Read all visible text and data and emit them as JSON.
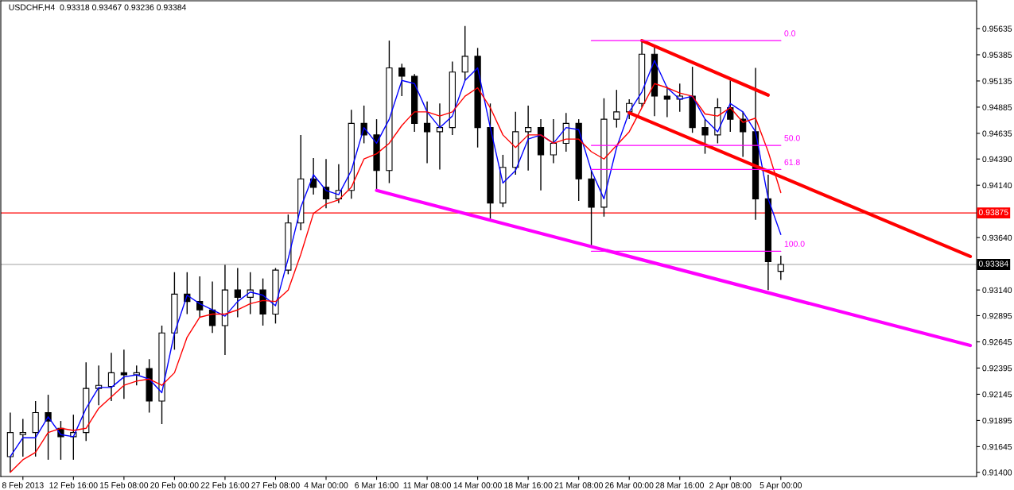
{
  "chart_data": {
    "type": "candlestick",
    "title": "USDCHF,H4  0.93318 0.93467 0.93236 0.93384",
    "categories": [
      null,
      "8 Feb 2013",
      null,
      null,
      null,
      "12 Feb 16:00",
      null,
      null,
      null,
      "15 Feb 08:00",
      null,
      null,
      null,
      "20 Feb 00:00",
      null,
      null,
      null,
      "22 Feb 16:00",
      null,
      null,
      null,
      "27 Feb 08:00",
      null,
      null,
      null,
      "4 Mar 00:00",
      null,
      null,
      null,
      "6 Mar 16:00",
      null,
      null,
      null,
      "11 Mar 08:00",
      null,
      null,
      null,
      "14 Mar 00:00",
      null,
      null,
      null,
      "18 Mar 16:00",
      null,
      null,
      null,
      "21 Mar 08:00",
      null,
      null,
      null,
      "26 Mar 00:00",
      null,
      null,
      null,
      "28 Mar 16:00",
      null,
      null,
      null,
      "2 Apr 08:00",
      null,
      null,
      null,
      "5 Apr 00:00",
      null,
      null,
      null,
      null,
      null,
      null,
      null,
      null,
      null,
      null,
      null,
      null,
      null,
      null,
      null
    ],
    "ohlc": [
      [
        0.9155,
        0.9197,
        0.914,
        0.9178
      ],
      [
        0.9176,
        0.9191,
        0.9155,
        0.9178
      ],
      [
        0.9178,
        0.9208,
        0.9155,
        0.9197
      ],
      [
        0.9197,
        0.9214,
        0.9152,
        0.9189
      ],
      [
        0.9182,
        0.9189,
        0.9152,
        0.9174
      ],
      [
        0.9174,
        0.9195,
        0.9152,
        0.9178
      ],
      [
        0.9178,
        0.9245,
        0.917,
        0.922
      ],
      [
        0.922,
        0.9242,
        0.9204,
        0.9223
      ],
      [
        0.9222,
        0.9254,
        0.9208,
        0.9235
      ],
      [
        0.9235,
        0.9257,
        0.921,
        0.9233
      ],
      [
        0.9233,
        0.9242,
        0.9223,
        0.9235
      ],
      [
        0.9239,
        0.9248,
        0.9197,
        0.9208
      ],
      [
        0.9208,
        0.928,
        0.9186,
        0.9273
      ],
      [
        0.9273,
        0.9331,
        0.9257,
        0.931
      ],
      [
        0.931,
        0.9331,
        0.9291,
        0.9303
      ],
      [
        0.9303,
        0.9327,
        0.9288,
        0.9295
      ],
      [
        0.9295,
        0.9322,
        0.9273,
        0.928
      ],
      [
        0.928,
        0.9338,
        0.9252,
        0.9314
      ],
      [
        0.9314,
        0.9335,
        0.9288,
        0.9307
      ],
      [
        0.9307,
        0.9331,
        0.9291,
        0.9314
      ],
      [
        0.9314,
        0.9325,
        0.928,
        0.9291
      ],
      [
        0.9291,
        0.9335,
        0.9282,
        0.9333
      ],
      [
        0.9333,
        0.9386,
        0.9329,
        0.9378
      ],
      [
        0.9378,
        0.9462,
        0.9371,
        0.942
      ],
      [
        0.942,
        0.944,
        0.9405,
        0.9412
      ],
      [
        0.9412,
        0.9439,
        0.9392,
        0.9401
      ],
      [
        0.9401,
        0.9434,
        0.9397,
        0.9409
      ],
      [
        0.9409,
        0.9486,
        0.9401,
        0.9473
      ],
      [
        0.9473,
        0.949,
        0.9454,
        0.9462
      ],
      [
        0.9462,
        0.9477,
        0.9409,
        0.9428
      ],
      [
        0.9428,
        0.9552,
        0.9416,
        0.9526
      ],
      [
        0.9526,
        0.953,
        0.9499,
        0.9518
      ],
      [
        0.9518,
        0.952,
        0.9465,
        0.9473
      ],
      [
        0.9473,
        0.9494,
        0.9435,
        0.9465
      ],
      [
        0.9465,
        0.9492,
        0.9429,
        0.9469
      ],
      [
        0.9469,
        0.9532,
        0.9462,
        0.9522
      ],
      [
        0.9522,
        0.9566,
        0.9514,
        0.9537
      ],
      [
        0.9537,
        0.9545,
        0.945,
        0.9469
      ],
      [
        0.9469,
        0.9492,
        0.9382,
        0.9397
      ],
      [
        0.9397,
        0.9443,
        0.9393,
        0.9431
      ],
      [
        0.9431,
        0.9484,
        0.9424,
        0.9465
      ],
      [
        0.9465,
        0.949,
        0.9428,
        0.9469
      ],
      [
        0.9469,
        0.9477,
        0.9409,
        0.9443
      ],
      [
        0.9443,
        0.9477,
        0.9435,
        0.9454
      ],
      [
        0.9454,
        0.9483,
        0.9446,
        0.9473
      ],
      [
        0.9473,
        0.9477,
        0.9399,
        0.942
      ],
      [
        0.942,
        0.9428,
        0.9356,
        0.9393
      ],
      [
        0.9393,
        0.9497,
        0.9384,
        0.9477
      ],
      [
        0.9477,
        0.9505,
        0.9469,
        0.9484
      ],
      [
        0.9484,
        0.9496,
        0.9477,
        0.9492
      ],
      [
        0.9492,
        0.9552,
        0.9488,
        0.9539
      ],
      [
        0.9539,
        0.9546,
        0.948,
        0.9499
      ],
      [
        0.9499,
        0.9508,
        0.9479,
        0.9496
      ],
      [
        0.9496,
        0.9511,
        0.9484,
        0.9499
      ],
      [
        0.9499,
        0.9527,
        0.9464,
        0.9469
      ],
      [
        0.9469,
        0.9477,
        0.9444,
        0.9462
      ],
      [
        0.9462,
        0.9497,
        0.9454,
        0.9488
      ],
      [
        0.9488,
        0.9514,
        0.9465,
        0.9477
      ],
      [
        0.9477,
        0.9484,
        0.9441,
        0.9465
      ],
      [
        0.9465,
        0.9526,
        0.9381,
        0.9401
      ],
      [
        0.9401,
        0.9424,
        0.9314,
        0.9341
      ],
      [
        0.93318,
        0.93467,
        0.93236,
        0.93384
      ],
      null,
      null,
      null,
      null,
      null,
      null,
      null,
      null,
      null,
      null,
      null,
      null,
      null,
      null,
      null
    ],
    "series": [
      {
        "type": "line",
        "color": "#0000ff",
        "values": [
          0.9155,
          0.9173,
          0.9173,
          0.9193,
          0.9176,
          0.9174,
          0.9201,
          0.9221,
          0.9221,
          0.9231,
          0.9233,
          0.9229,
          0.9216,
          0.9273,
          0.9309,
          0.9301,
          0.9295,
          0.9289,
          0.9303,
          0.9312,
          0.9309,
          0.9299,
          0.9344,
          0.9393,
          0.9424,
          0.9409,
          0.9405,
          0.9428,
          0.9469,
          0.9454,
          0.9477,
          0.9514,
          0.9511,
          0.9484,
          0.9469,
          0.948,
          0.9514,
          0.9526,
          0.9469,
          0.9416,
          0.9428,
          0.9458,
          0.9462,
          0.9454,
          0.9469,
          0.9467,
          0.9428,
          0.9401,
          0.945,
          0.9484,
          0.9503,
          0.9533,
          0.9507,
          0.9496,
          0.9499,
          0.9477,
          0.9465,
          0.9492,
          0.9484,
          0.9465,
          0.9401,
          0.9367,
          null,
          null,
          null,
          null,
          null,
          null,
          null,
          null,
          null,
          null,
          null,
          null,
          null,
          null,
          null
        ]
      },
      {
        "type": "line",
        "color": "#ff0000",
        "values": [
          0.914,
          0.9152,
          0.9159,
          0.9178,
          0.9182,
          0.918,
          0.9182,
          0.9201,
          0.9212,
          0.9223,
          0.9227,
          0.9229,
          0.9223,
          0.9235,
          0.9269,
          0.9288,
          0.9291,
          0.9291,
          0.9295,
          0.9301,
          0.9304,
          0.9303,
          0.9314,
          0.9348,
          0.9387,
          0.9396,
          0.94,
          0.9412,
          0.9439,
          0.9444,
          0.9454,
          0.9471,
          0.9484,
          0.9484,
          0.948,
          0.9484,
          0.9499,
          0.9507,
          0.9488,
          0.9462,
          0.945,
          0.9462,
          0.9462,
          0.9454,
          0.9458,
          0.9458,
          0.9446,
          0.9439,
          0.9452,
          0.9465,
          0.9488,
          0.9511,
          0.9507,
          0.9502,
          0.9499,
          0.9482,
          0.948,
          0.9488,
          0.9474,
          0.9478,
          0.9446,
          0.9407,
          null,
          null,
          null,
          null,
          null,
          null,
          null,
          null,
          null,
          null,
          null,
          null,
          null,
          null,
          null
        ]
      },
      {
        "type": "line",
        "color": "#ff00ff",
        "values": [
          null,
          null,
          null,
          null,
          null,
          null,
          null,
          null,
          null,
          null,
          null,
          null,
          null,
          null,
          null,
          null,
          null,
          null,
          null,
          null,
          null,
          null,
          null,
          null,
          null,
          null,
          null,
          null,
          null,
          0.9409,
          null,
          null,
          null,
          null,
          null,
          null,
          null,
          null,
          null,
          null,
          null,
          null,
          null,
          null,
          null,
          null,
          null,
          null,
          null,
          null,
          null,
          null,
          null,
          null,
          null,
          null,
          null,
          null,
          null,
          null,
          null,
          null,
          null,
          null,
          null,
          null,
          null,
          null,
          null,
          null,
          null,
          null,
          null,
          null,
          null,
          null,
          0.9261
        ]
      },
      {
        "type": "line",
        "color": "#ff0000",
        "values": [
          null,
          null,
          null,
          null,
          null,
          null,
          null,
          null,
          null,
          null,
          null,
          null,
          null,
          null,
          null,
          null,
          null,
          null,
          null,
          null,
          null,
          null,
          null,
          null,
          null,
          null,
          null,
          null,
          null,
          null,
          null,
          null,
          null,
          null,
          null,
          null,
          null,
          null,
          null,
          null,
          null,
          null,
          null,
          null,
          null,
          null,
          null,
          null,
          null,
          null,
          0.9552,
          null,
          null,
          null,
          null,
          null,
          null,
          null,
          null,
          null,
          0.95,
          null,
          null,
          null,
          null,
          null,
          null,
          null,
          null,
          null,
          null,
          null,
          null,
          null,
          null,
          null,
          null
        ]
      },
      {
        "type": "line",
        "color": "#ff0000",
        "values": [
          null,
          null,
          null,
          null,
          null,
          null,
          null,
          null,
          null,
          null,
          null,
          null,
          null,
          null,
          null,
          null,
          null,
          null,
          null,
          null,
          null,
          null,
          null,
          null,
          null,
          null,
          null,
          null,
          null,
          null,
          null,
          null,
          null,
          null,
          null,
          null,
          null,
          null,
          null,
          null,
          null,
          null,
          null,
          null,
          null,
          null,
          null,
          null,
          null,
          0.9483,
          null,
          null,
          null,
          null,
          null,
          null,
          null,
          null,
          null,
          null,
          null,
          null,
          null,
          null,
          null,
          null,
          null,
          null,
          null,
          null,
          null,
          null,
          null,
          null,
          null,
          null,
          0.9346
        ]
      },
      {
        "type": "line",
        "name": "0.0",
        "color": "#ff00ff",
        "values": [
          null,
          null,
          null,
          null,
          null,
          null,
          null,
          null,
          null,
          null,
          null,
          null,
          null,
          null,
          null,
          null,
          null,
          null,
          null,
          null,
          null,
          null,
          null,
          null,
          null,
          null,
          null,
          null,
          null,
          null,
          null,
          null,
          null,
          null,
          null,
          null,
          null,
          null,
          null,
          null,
          null,
          null,
          null,
          null,
          null,
          null,
          0.9552,
          null,
          null,
          null,
          null,
          null,
          null,
          null,
          null,
          null,
          null,
          null,
          null,
          null,
          null,
          0.9552,
          null,
          null,
          null,
          null,
          null,
          null,
          null,
          null,
          null,
          null,
          null,
          null,
          null,
          null,
          null
        ]
      },
      {
        "type": "line",
        "name": "50.0",
        "color": "#ff00ff",
        "values": [
          null,
          null,
          null,
          null,
          null,
          null,
          null,
          null,
          null,
          null,
          null,
          null,
          null,
          null,
          null,
          null,
          null,
          null,
          null,
          null,
          null,
          null,
          null,
          null,
          null,
          null,
          null,
          null,
          null,
          null,
          null,
          null,
          null,
          null,
          null,
          null,
          null,
          null,
          null,
          null,
          null,
          null,
          null,
          null,
          null,
          null,
          0.9452,
          null,
          null,
          null,
          null,
          null,
          null,
          null,
          null,
          null,
          null,
          null,
          null,
          null,
          null,
          0.9452,
          null,
          null,
          null,
          null,
          null,
          null,
          null,
          null,
          null,
          null,
          null,
          null,
          null,
          null,
          null
        ]
      },
      {
        "type": "line",
        "name": "61.8",
        "color": "#ff00ff",
        "values": [
          null,
          null,
          null,
          null,
          null,
          null,
          null,
          null,
          null,
          null,
          null,
          null,
          null,
          null,
          null,
          null,
          null,
          null,
          null,
          null,
          null,
          null,
          null,
          null,
          null,
          null,
          null,
          null,
          null,
          null,
          null,
          null,
          null,
          null,
          null,
          null,
          null,
          null,
          null,
          null,
          null,
          null,
          null,
          null,
          null,
          null,
          0.9429,
          null,
          null,
          null,
          null,
          null,
          null,
          null,
          null,
          null,
          null,
          null,
          null,
          null,
          null,
          0.9429,
          null,
          null,
          null,
          null,
          null,
          null,
          null,
          null,
          null,
          null,
          null,
          null,
          null,
          null,
          null
        ]
      },
      {
        "type": "line",
        "name": "100.0",
        "color": "#ff00ff",
        "values": [
          null,
          null,
          null,
          null,
          null,
          null,
          null,
          null,
          null,
          null,
          null,
          null,
          null,
          null,
          null,
          null,
          null,
          null,
          null,
          null,
          null,
          null,
          null,
          null,
          null,
          null,
          null,
          null,
          null,
          null,
          null,
          null,
          null,
          null,
          null,
          null,
          null,
          null,
          null,
          null,
          null,
          null,
          null,
          null,
          null,
          null,
          0.9351,
          null,
          null,
          null,
          null,
          null,
          null,
          null,
          null,
          null,
          null,
          null,
          null,
          null,
          null,
          0.9351,
          null,
          null,
          null,
          null,
          null,
          null,
          null,
          null,
          null,
          null,
          null,
          null,
          null,
          null,
          null
        ]
      }
    ],
    "ref_lines": [
      {
        "axis": "y",
        "value": 0.93875,
        "label": "0.93875",
        "color": "#ff0000"
      },
      {
        "axis": "y",
        "value": 0.93384,
        "label": "0.93384",
        "color": "#c0c0c0"
      }
    ],
    "ylim": [
      0.9136,
      0.959
    ],
    "yticks": [
      {
        "value": 0.914,
        "label": "0.91400"
      },
      {
        "value": 0.91645,
        "label": "0.91645"
      },
      {
        "value": 0.91895,
        "label": "0.91895"
      },
      {
        "value": 0.92145,
        "label": "0.92145"
      },
      {
        "value": 0.92395,
        "label": "0.92395"
      },
      {
        "value": 0.92645,
        "label": "0.92645"
      },
      {
        "value": 0.92895,
        "label": "0.92895"
      },
      {
        "value": 0.9314,
        "label": "0.93140"
      },
      {
        "value": 0.9364,
        "label": "0.93640"
      },
      {
        "value": 0.9414,
        "label": "0.94140"
      },
      {
        "value": 0.9439,
        "label": "0.94390"
      },
      {
        "value": 0.94635,
        "label": "0.94635"
      },
      {
        "value": 0.94885,
        "label": "0.94885"
      },
      {
        "value": 0.95135,
        "label": "0.95135"
      },
      {
        "value": 0.95385,
        "label": "0.95385"
      },
      {
        "value": 0.95635,
        "label": "0.95635"
      }
    ]
  }
}
